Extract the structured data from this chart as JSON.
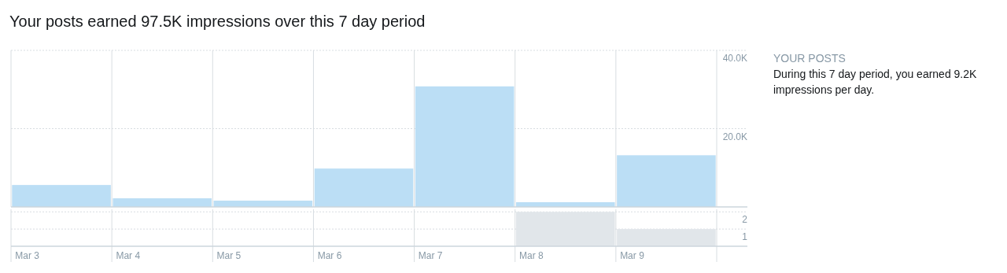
{
  "chart_data": [
    {
      "type": "bar",
      "title": "Your posts earned 97.5K impressions over this 7 day period",
      "annotations": [
        "YOUR POSTS",
        "During this 7 day period, you earned 9.2K impressions per day."
      ],
      "categories": [
        null,
        null,
        null,
        null,
        null,
        null,
        null
      ],
      "values": [
        5600,
        2200,
        1600,
        9800,
        30800,
        1200,
        13200
      ],
      "color": "#bbdef5",
      "ylim": [
        0,
        40000
      ],
      "yticks": [
        {
          "value": 20000,
          "label": "20.0K"
        },
        {
          "value": 40000,
          "label": "40.0K"
        }
      ],
      "grid": true,
      "tick_labels": "y"
    },
    {
      "type": "bar",
      "categories": [
        "Mar 3",
        "Mar 4",
        "Mar 5",
        "Mar 6",
        "Mar 7",
        "Mar 8",
        "Mar 9"
      ],
      "values": [
        0,
        0,
        0,
        0,
        0,
        2,
        1
      ],
      "color": "#e1e6ea",
      "ylim": [
        0,
        2.15
      ],
      "yticks": [
        1,
        2
      ],
      "grid": true
    }
  ]
}
